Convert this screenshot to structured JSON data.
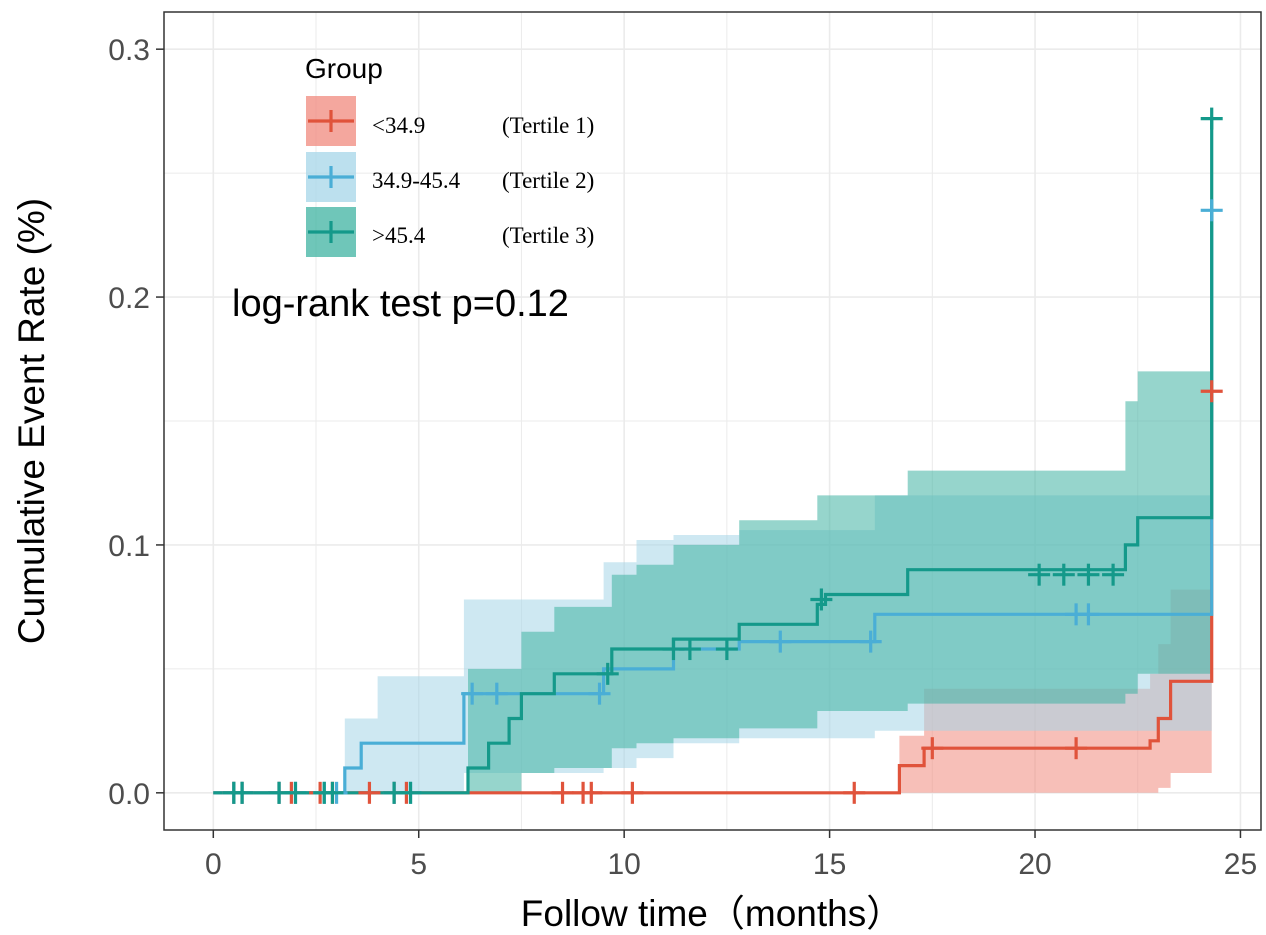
{
  "chart_data": {
    "type": "line",
    "subtype": "kaplan-meier-cumulative-incidence",
    "title": "",
    "xlabel": "Follow time（months）",
    "ylabel": "Cumulative Event Rate (%)",
    "xlim": [
      -1.2,
      25.5
    ],
    "ylim": [
      -0.015,
      0.315
    ],
    "x_ticks": [
      0,
      5,
      10,
      15,
      20,
      25
    ],
    "x_tick_labels": [
      "0",
      "5",
      "10",
      "15",
      "20",
      "25"
    ],
    "y_ticks": [
      0.0,
      0.1,
      0.2,
      0.3
    ],
    "y_tick_labels": [
      "0.0",
      "0.1",
      "0.2",
      "0.3"
    ],
    "grid": true,
    "legend": {
      "title": "Group",
      "position": "top-left",
      "entries": [
        {
          "label": "<34.9",
          "note": "(Tertile 1)"
        },
        {
          "label": "34.9-45.4",
          "note": "(Tertile 2)"
        },
        {
          "label": ">45.4",
          "note": "(Tertile 3)"
        }
      ]
    },
    "annotation": "log-rank test p=0.12",
    "series": [
      {
        "name": "<34.9",
        "color": "#e0533b",
        "fill": "#f08a7e",
        "step": [
          [
            0,
            0
          ],
          [
            16.7,
            0
          ],
          [
            16.7,
            0.011
          ],
          [
            17.3,
            0.011
          ],
          [
            17.3,
            0.018
          ],
          [
            22.8,
            0.018
          ],
          [
            22.8,
            0.021
          ],
          [
            23.0,
            0.021
          ],
          [
            23.0,
            0.03
          ],
          [
            23.3,
            0.03
          ],
          [
            23.3,
            0.045
          ],
          [
            24.3,
            0.045
          ],
          [
            24.3,
            0.162
          ]
        ],
        "band": [
          [
            16.7,
            0.0,
            0.023
          ],
          [
            17.3,
            0.0,
            0.042
          ],
          [
            22.8,
            0.0,
            0.048
          ],
          [
            23.0,
            0.002,
            0.06
          ],
          [
            23.3,
            0.008,
            0.082
          ],
          [
            24.3,
            0.008,
            0.082
          ]
        ],
        "censor": [
          [
            0.5,
            0
          ],
          [
            0.7,
            0
          ],
          [
            1.6,
            0
          ],
          [
            1.9,
            0
          ],
          [
            2.6,
            0
          ],
          [
            2.9,
            0
          ],
          [
            3.8,
            0
          ],
          [
            4.4,
            0
          ],
          [
            4.7,
            0
          ],
          [
            8.5,
            0
          ],
          [
            9.0,
            0
          ],
          [
            9.2,
            0
          ],
          [
            10.2,
            0
          ],
          [
            15.6,
            0
          ],
          [
            17.5,
            0.018
          ],
          [
            21.0,
            0.018
          ],
          [
            24.3,
            0.162
          ]
        ]
      },
      {
        "name": "34.9-45.4",
        "color": "#4aaed6",
        "fill": "#a6d6e8",
        "step": [
          [
            0,
            0
          ],
          [
            3.2,
            0
          ],
          [
            3.2,
            0.01
          ],
          [
            3.6,
            0.01
          ],
          [
            3.6,
            0.02
          ],
          [
            6.1,
            0.02
          ],
          [
            6.1,
            0.04
          ],
          [
            9.5,
            0.04
          ],
          [
            9.5,
            0.05
          ],
          [
            11.2,
            0.05
          ],
          [
            11.2,
            0.058
          ],
          [
            12.8,
            0.058
          ],
          [
            12.8,
            0.061
          ],
          [
            16.1,
            0.061
          ],
          [
            16.1,
            0.072
          ],
          [
            24.3,
            0.072
          ],
          [
            24.3,
            0.235
          ]
        ],
        "band": [
          [
            3.2,
            0.0,
            0.03
          ],
          [
            4.0,
            0.0,
            0.047
          ],
          [
            6.1,
            0.008,
            0.078
          ],
          [
            9.5,
            0.01,
            0.093
          ],
          [
            10.3,
            0.014,
            0.102
          ],
          [
            11.2,
            0.02,
            0.104
          ],
          [
            12.8,
            0.022,
            0.106
          ],
          [
            16.1,
            0.025,
            0.12
          ],
          [
            24.3,
            0.025,
            0.12
          ]
        ],
        "censor": [
          [
            0.5,
            0
          ],
          [
            0.7,
            0
          ],
          [
            1.6,
            0
          ],
          [
            2.0,
            0
          ],
          [
            2.7,
            0
          ],
          [
            3.0,
            0
          ],
          [
            4.4,
            0
          ],
          [
            4.8,
            0
          ],
          [
            6.3,
            0.04
          ],
          [
            6.9,
            0.04
          ],
          [
            9.4,
            0.04
          ],
          [
            13.8,
            0.061
          ],
          [
            16.0,
            0.061
          ],
          [
            21.0,
            0.072
          ],
          [
            21.3,
            0.072
          ],
          [
            24.3,
            0.235
          ]
        ]
      },
      {
        "name": ">45.4",
        "color": "#14998a",
        "fill": "#3fb3a2",
        "step": [
          [
            0,
            0
          ],
          [
            6.2,
            0
          ],
          [
            6.2,
            0.01
          ],
          [
            6.7,
            0.01
          ],
          [
            6.7,
            0.02
          ],
          [
            7.2,
            0.02
          ],
          [
            7.2,
            0.03
          ],
          [
            7.5,
            0.03
          ],
          [
            7.5,
            0.04
          ],
          [
            8.3,
            0.04
          ],
          [
            8.3,
            0.048
          ],
          [
            9.7,
            0.048
          ],
          [
            9.7,
            0.058
          ],
          [
            11.2,
            0.058
          ],
          [
            11.2,
            0.062
          ],
          [
            12.8,
            0.062
          ],
          [
            12.8,
            0.068
          ],
          [
            14.7,
            0.068
          ],
          [
            14.7,
            0.076
          ],
          [
            14.9,
            0.076
          ],
          [
            14.9,
            0.08
          ],
          [
            16.9,
            0.08
          ],
          [
            16.9,
            0.09
          ],
          [
            22.2,
            0.09
          ],
          [
            22.2,
            0.1
          ],
          [
            22.5,
            0.1
          ],
          [
            22.5,
            0.111
          ],
          [
            24.3,
            0.111
          ],
          [
            24.3,
            0.272
          ]
        ],
        "band": [
          [
            6.2,
            0.0,
            0.05
          ],
          [
            7.5,
            0.008,
            0.065
          ],
          [
            8.3,
            0.01,
            0.075
          ],
          [
            9.7,
            0.018,
            0.088
          ],
          [
            10.3,
            0.02,
            0.092
          ],
          [
            11.2,
            0.022,
            0.1
          ],
          [
            12.8,
            0.026,
            0.11
          ],
          [
            14.7,
            0.033,
            0.12
          ],
          [
            16.9,
            0.036,
            0.13
          ],
          [
            22.2,
            0.04,
            0.158
          ],
          [
            22.5,
            0.048,
            0.17
          ],
          [
            24.3,
            0.048,
            0.17
          ]
        ],
        "censor": [
          [
            0.5,
            0
          ],
          [
            0.7,
            0
          ],
          [
            1.6,
            0
          ],
          [
            2.0,
            0
          ],
          [
            2.7,
            0
          ],
          [
            2.9,
            0
          ],
          [
            4.4,
            0
          ],
          [
            4.8,
            0
          ],
          [
            9.6,
            0.048
          ],
          [
            11.2,
            0.058
          ],
          [
            11.6,
            0.058
          ],
          [
            12.5,
            0.058
          ],
          [
            14.8,
            0.078
          ],
          [
            20.1,
            0.088
          ],
          [
            20.7,
            0.088
          ],
          [
            21.3,
            0.088
          ],
          [
            21.9,
            0.088
          ],
          [
            24.3,
            0.272
          ]
        ]
      }
    ]
  }
}
